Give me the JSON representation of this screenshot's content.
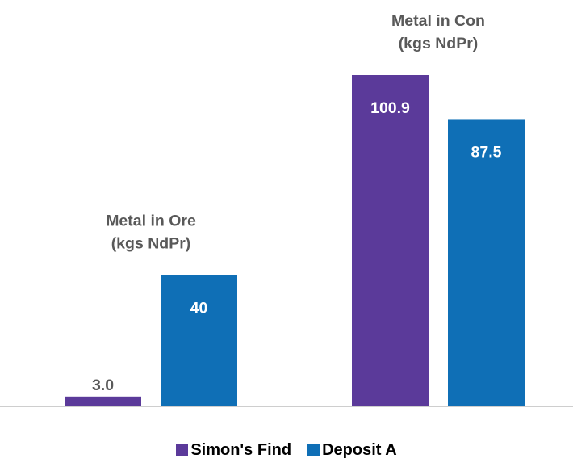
{
  "chart_data": {
    "type": "bar",
    "categories": [
      "Metal in Ore\n(kgs NdPr)",
      "Metal in Con\n(kgs NdPr)"
    ],
    "series": [
      {
        "name": "Simon's Find",
        "color": "#5b3a9a",
        "values": [
          3.0,
          100.9
        ],
        "labels": [
          "3.0",
          "100.9"
        ]
      },
      {
        "name": "Deposit A",
        "color": "#0f6fb6",
        "values": [
          40,
          87.5
        ],
        "labels": [
          "40",
          "87.5"
        ]
      }
    ],
    "title": "",
    "xlabel": "",
    "ylabel": "",
    "ylim": [
      0,
      100.9
    ],
    "grid": false,
    "legend_position": "bottom"
  }
}
